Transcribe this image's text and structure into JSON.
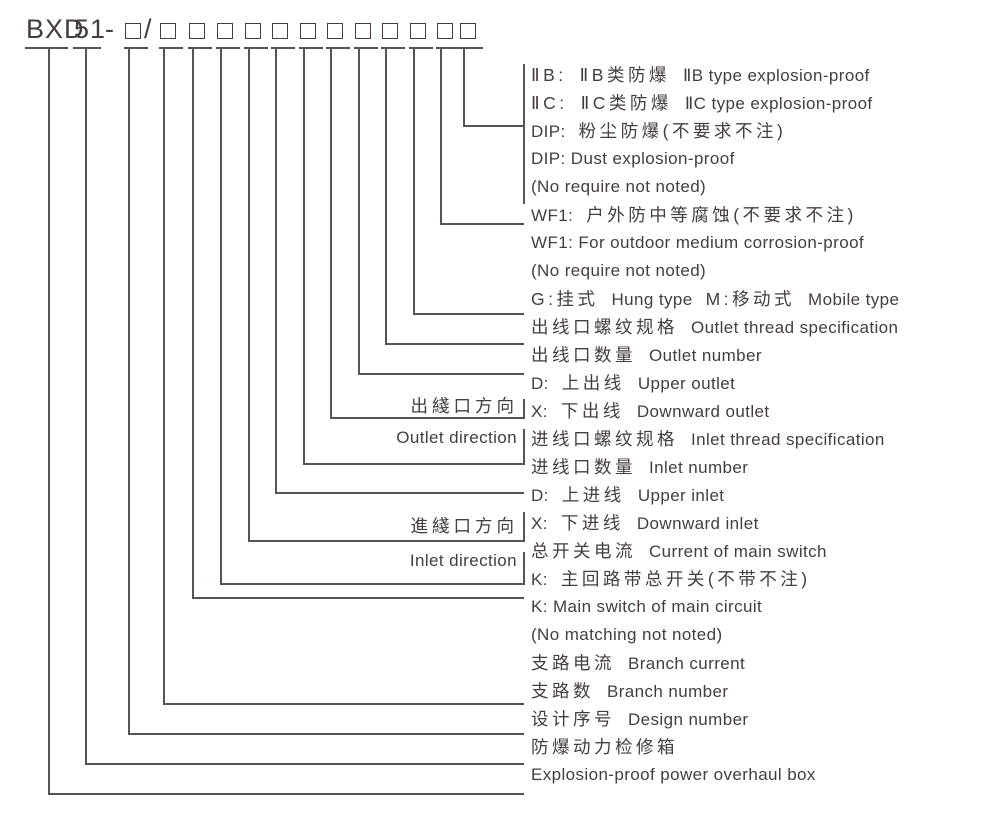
{
  "page": {
    "background": "#ffffff",
    "ink_color": "#453d3f",
    "line_color": "#5a5254"
  },
  "model_code": {
    "name": "BXD",
    "design_no": "51",
    "separator": "-",
    "slash": "/",
    "placeholder_box_count": 13
  },
  "designation_rows": [
    {
      "parts": [
        "ⅡB:",
        "ⅡB类防爆",
        "ⅡB type explosion-proof"
      ]
    },
    {
      "parts": [
        "ⅡC:",
        "ⅡC类防爆",
        "ⅡC type explosion-proof"
      ]
    },
    {
      "parts": [
        "DIP:",
        "粉尘防爆(不要求不注)"
      ]
    },
    {
      "parts": [
        "DIP: Dust explosion-proof"
      ]
    },
    {
      "parts": [
        "(No require not noted)"
      ]
    },
    {
      "parts": [
        "WF1:",
        "户外防中等腐蚀(不要求不注)"
      ]
    },
    {
      "parts": [
        "WF1: For outdoor medium corrosion-proof"
      ]
    },
    {
      "parts": [
        "(No require not noted)"
      ]
    },
    {
      "parts": [
        "G:挂式",
        "Hung type",
        "M:移动式",
        "Mobile type"
      ]
    },
    {
      "parts": [
        "出线口螺纹规格",
        "Outlet thread specification"
      ]
    },
    {
      "parts": [
        "出线口数量",
        "Outlet number"
      ]
    },
    {
      "parts": [
        "D:",
        "上出线",
        "Upper outlet"
      ]
    },
    {
      "parts": [
        "X:",
        "下出线",
        "Downward outlet"
      ]
    },
    {
      "parts": [
        "进线口螺纹规格",
        "Inlet thread specification"
      ]
    },
    {
      "parts": [
        "进线口数量",
        "Inlet number"
      ]
    },
    {
      "parts": [
        "D:",
        "上进线",
        "Upper inlet"
      ]
    },
    {
      "parts": [
        "X:",
        "下进线",
        "Downward inlet"
      ]
    },
    {
      "parts": [
        "总开关电流",
        "Current of main switch"
      ]
    },
    {
      "parts": [
        "K:",
        "主回路带总开关(不带不注)"
      ]
    },
    {
      "parts": [
        "K: Main switch of main circuit"
      ]
    },
    {
      "parts": [
        "(No matching not noted)"
      ]
    },
    {
      "parts": [
        "支路电流",
        "Branch current"
      ]
    },
    {
      "parts": [
        "支路数",
        "Branch number"
      ]
    },
    {
      "parts": [
        "设计序号",
        "Design number"
      ]
    },
    {
      "parts": [
        "防爆动力检修箱"
      ]
    },
    {
      "parts": [
        "Explosion-proof power overhaul box"
      ]
    }
  ],
  "side_labels": {
    "outlet_zh": "出綫口方向",
    "outlet_en": "Outlet direction",
    "inlet_zh": "進綫口方向",
    "inlet_en": "Inlet direction"
  }
}
